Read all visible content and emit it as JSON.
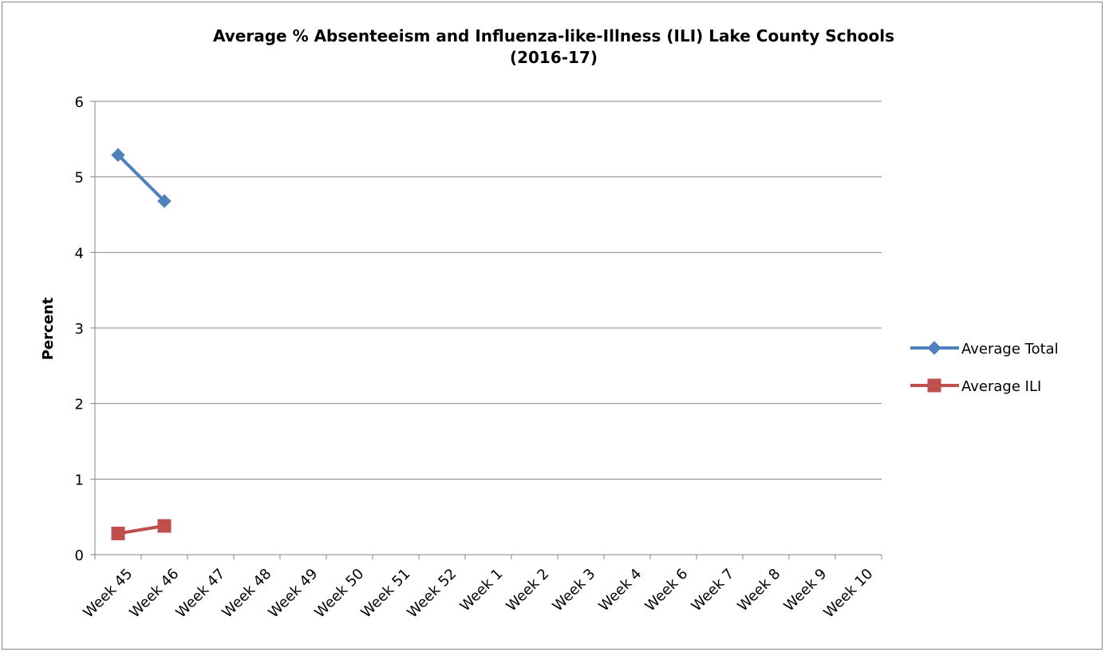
{
  "chart_data": {
    "type": "line",
    "title": [
      "Average % Absenteeism and Influenza-like-Illness (ILI) Lake County Schools",
      "(2016-17)"
    ],
    "xlabel": "",
    "ylabel": "Percent",
    "ylim": [
      0,
      6
    ],
    "yticks": [
      0,
      1,
      2,
      3,
      4,
      5,
      6
    ],
    "grid": "horizontal",
    "legend_position": "right",
    "categories": [
      "Week 45",
      "Week 46",
      "Week 47",
      "Week 48",
      "Week 49",
      "Week 50",
      "Week 51",
      "Week 52",
      "Week 1",
      "Week 2",
      "Week 3",
      "Week 4",
      "Week 6",
      "Week 7",
      "Week 8",
      "Week 9",
      "Week 10"
    ],
    "series": [
      {
        "name": "Average Total",
        "color": "#4F81BD",
        "marker": "diamond",
        "values": [
          5.29,
          4.68,
          null,
          null,
          null,
          null,
          null,
          null,
          null,
          null,
          null,
          null,
          null,
          null,
          null,
          null,
          null
        ]
      },
      {
        "name": "Average ILI",
        "color": "#C0504D",
        "marker": "square",
        "values": [
          0.28,
          0.38,
          null,
          null,
          null,
          null,
          null,
          null,
          null,
          null,
          null,
          null,
          null,
          null,
          null,
          null,
          null
        ]
      }
    ]
  }
}
